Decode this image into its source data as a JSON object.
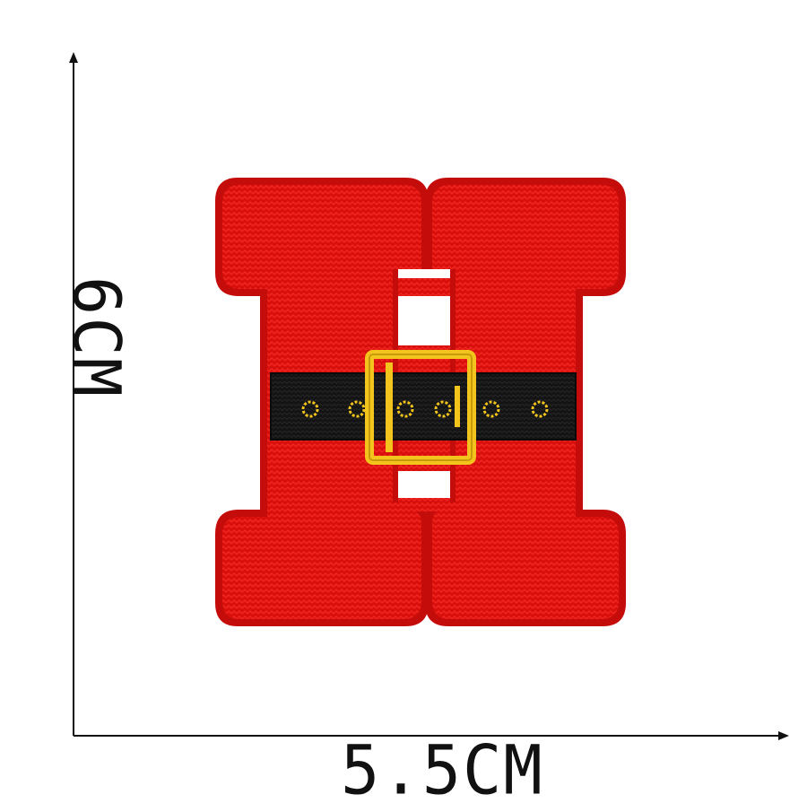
{
  "dimensions": {
    "width_label": "5.5CM",
    "height_label": "6CM"
  },
  "patch": {
    "letter": "H",
    "belt_holes": 6
  },
  "colors": {
    "patch_red": "#e2120e",
    "patch_edge": "#c40c0a",
    "belt_black": "#141414",
    "buckle_gold": "#f3c51c",
    "axis_line": "#111111",
    "background": "#ffffff"
  }
}
